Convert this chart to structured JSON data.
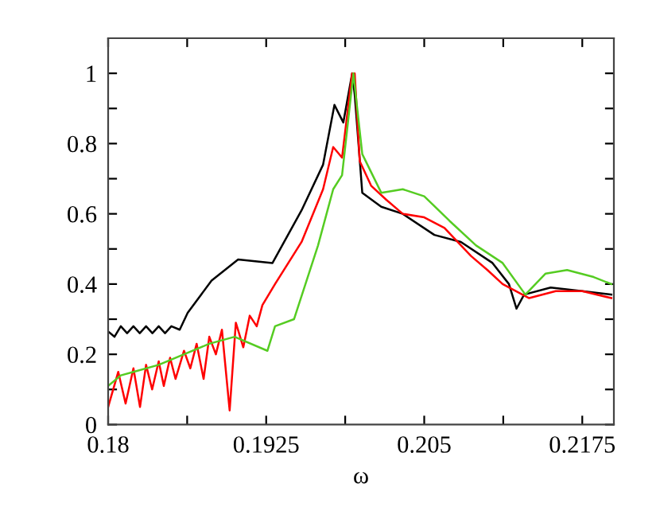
{
  "chart_data": {
    "type": "line",
    "xlabel": "ω",
    "xlim": [
      0.18,
      0.22
    ],
    "ylim": [
      0,
      1.1
    ],
    "xticks": [
      0.18,
      {
        "value": 0.18625,
        "label": null
      },
      0.1925,
      {
        "value": 0.19875,
        "label": null
      },
      0.205,
      {
        "value": 0.21125,
        "label": null
      },
      0.2175
    ],
    "yticks": [
      0,
      {
        "value": 0.1,
        "label": null
      },
      0.2,
      {
        "value": 0.3,
        "label": null
      },
      0.4,
      {
        "value": 0.5,
        "label": null
      },
      0.6,
      {
        "value": 0.7,
        "label": null
      },
      0.8,
      {
        "value": 0.9,
        "label": null
      },
      1
    ],
    "grid": false,
    "legend": false,
    "marker": "none",
    "line_style": "solid",
    "series": [
      {
        "color": "#000000",
        "x": [
          0.18,
          0.1805,
          0.181,
          0.1815,
          0.182,
          0.1825,
          0.183,
          0.1835,
          0.184,
          0.1845,
          0.185,
          0.18566,
          0.18629,
          0.18818,
          0.19028,
          0.193,
          0.1953,
          0.197,
          0.1979,
          0.1986,
          0.1993,
          0.1995,
          0.2001,
          0.2016,
          0.2033,
          0.2058,
          0.2079,
          0.2104,
          0.2117,
          0.2123,
          0.2129,
          0.215,
          0.2175,
          0.2198
        ],
        "values": [
          0.265,
          0.25,
          0.28,
          0.26,
          0.28,
          0.26,
          0.28,
          0.26,
          0.28,
          0.26,
          0.28,
          0.27,
          0.318,
          0.41,
          0.47,
          0.46,
          0.61,
          0.74,
          0.91,
          0.86,
          1.0,
          0.94,
          0.66,
          0.62,
          0.6,
          0.54,
          0.52,
          0.46,
          0.4,
          0.33,
          0.37,
          0.39,
          0.38,
          0.37
        ]
      },
      {
        "color": "#ff0000",
        "x": [
          0.18,
          0.1808,
          0.18138,
          0.182,
          0.18252,
          0.183,
          0.18348,
          0.184,
          0.1844,
          0.1849,
          0.18533,
          0.186,
          0.1865,
          0.187,
          0.18755,
          0.188,
          0.18852,
          0.189,
          0.18961,
          0.1901,
          0.19069,
          0.1912,
          0.19175,
          0.1922,
          0.1932,
          0.1953,
          0.197,
          0.1978,
          0.1985,
          0.1993,
          0.1995,
          0.1999,
          0.2008,
          0.202,
          0.2033,
          0.205,
          0.2066,
          0.2087,
          0.21,
          0.2112,
          0.2133,
          0.2154,
          0.2175,
          0.2198
        ],
        "values": [
          0.05,
          0.15,
          0.06,
          0.16,
          0.05,
          0.17,
          0.1,
          0.18,
          0.11,
          0.19,
          0.13,
          0.21,
          0.16,
          0.23,
          0.13,
          0.25,
          0.2,
          0.27,
          0.04,
          0.29,
          0.22,
          0.31,
          0.28,
          0.34,
          0.4,
          0.52,
          0.67,
          0.79,
          0.76,
          1.0,
          1.0,
          0.75,
          0.68,
          0.64,
          0.6,
          0.59,
          0.56,
          0.48,
          0.44,
          0.4,
          0.36,
          0.38,
          0.38,
          0.36
        ]
      },
      {
        "color": "#55cc22",
        "x": [
          0.18,
          0.181,
          0.182,
          0.184,
          0.186,
          0.188,
          0.19,
          0.1926,
          0.1932,
          0.1947,
          0.1966,
          0.1978,
          0.1985,
          0.1994,
          0.1997,
          0.2001,
          0.2016,
          0.2033,
          0.205,
          0.207,
          0.2091,
          0.2112,
          0.213,
          0.2146,
          0.2163,
          0.2184,
          0.2198
        ],
        "values": [
          0.11,
          0.14,
          0.15,
          0.17,
          0.2,
          0.23,
          0.25,
          0.21,
          0.28,
          0.3,
          0.51,
          0.67,
          0.71,
          1.0,
          0.9,
          0.77,
          0.66,
          0.67,
          0.65,
          0.58,
          0.51,
          0.46,
          0.37,
          0.43,
          0.44,
          0.42,
          0.4
        ]
      }
    ]
  }
}
